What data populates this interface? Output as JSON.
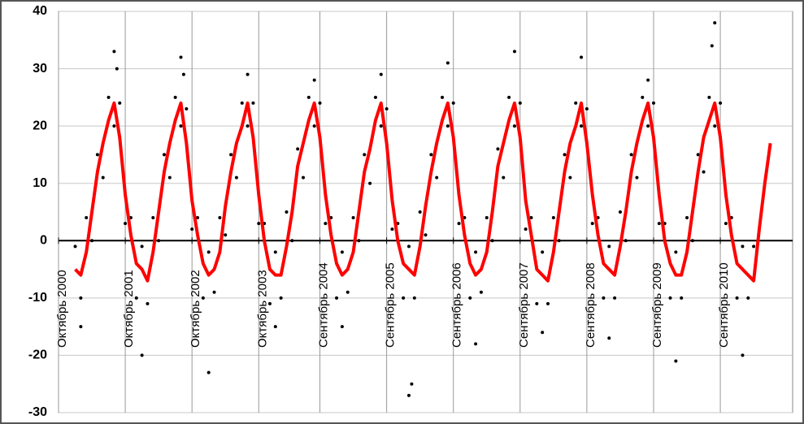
{
  "chart_data": {
    "type": "scatter",
    "xlim": [
      0,
      132
    ],
    "ylim": [
      -30,
      40
    ],
    "yticks": [
      -30,
      -20,
      -10,
      0,
      10,
      20,
      30,
      40
    ],
    "xticks": [
      {
        "value": 0,
        "label": "Октябрь 2000"
      },
      {
        "value": 12,
        "label": "Октябрь 2001"
      },
      {
        "value": 24,
        "label": "Октябрь 2002"
      },
      {
        "value": 36,
        "label": "Октябрь 2003"
      },
      {
        "value": 47,
        "label": "Сентябрь 2004"
      },
      {
        "value": 59,
        "label": "Сентябрь 2005"
      },
      {
        "value": 71,
        "label": "Сентябрь 2006"
      },
      {
        "value": 83,
        "label": "Сентябрь 2007"
      },
      {
        "value": 95,
        "label": "Сентябрь 2008"
      },
      {
        "value": 107,
        "label": "Сентябрь 2009"
      },
      {
        "value": 119,
        "label": "Сентябрь 2010"
      }
    ],
    "grid": true,
    "series": [
      {
        "type": "scatter",
        "color": "#000000",
        "x": [
          3,
          4,
          5,
          6,
          7,
          8,
          9,
          10,
          11,
          12,
          13,
          14,
          15,
          16,
          17,
          18,
          19,
          20,
          21,
          22,
          23,
          24,
          25,
          26,
          27,
          28,
          29,
          30,
          31,
          32,
          33,
          34,
          35,
          36,
          37,
          38,
          39,
          40,
          41,
          42,
          43,
          44,
          45,
          46,
          47,
          48,
          49,
          50,
          51,
          52,
          53,
          54,
          55,
          56,
          57,
          58,
          59,
          60,
          61,
          62,
          63,
          64,
          65,
          66,
          67,
          68,
          69,
          70,
          71,
          72,
          73,
          74,
          75,
          76,
          77,
          78,
          79,
          80,
          81,
          82,
          83,
          84,
          85,
          86,
          87,
          88,
          89,
          90,
          91,
          92,
          93,
          94,
          95,
          96,
          97,
          98,
          99,
          100,
          101,
          102,
          103,
          104,
          105,
          106,
          107,
          108,
          109,
          110,
          111,
          112,
          113,
          114,
          115,
          116,
          117,
          118,
          119,
          120,
          121,
          122,
          123,
          124,
          125,
          10,
          10.5,
          22,
          22.5,
          34,
          46,
          58,
          70,
          82,
          94,
          106,
          118,
          117.5,
          4,
          15,
          27,
          39,
          51,
          63,
          63.5,
          75,
          87,
          99,
          111,
          123
        ],
        "values": [
          -1,
          -10,
          4,
          0,
          15,
          11,
          25,
          20,
          24,
          3,
          4,
          -10,
          -1,
          -11,
          4,
          0,
          15,
          11,
          25,
          20,
          23,
          2,
          4,
          -10,
          -2,
          -9,
          4,
          1,
          15,
          11,
          24,
          20,
          24,
          3,
          3,
          -11,
          -2,
          -10,
          5,
          0,
          16,
          11,
          25,
          20,
          24,
          3,
          4,
          -10,
          -2,
          -9,
          4,
          0,
          15,
          10,
          25,
          20,
          23,
          2,
          3,
          -10,
          -1,
          -10,
          5,
          1,
          15,
          11,
          25,
          20,
          24,
          3,
          4,
          -10,
          -2,
          -9,
          4,
          0,
          16,
          11,
          25,
          20,
          24,
          2,
          4,
          -11,
          -2,
          -11,
          4,
          0,
          15,
          11,
          24,
          20,
          23,
          3,
          4,
          -10,
          -1,
          -10,
          5,
          0,
          15,
          11,
          25,
          20,
          24,
          3,
          3,
          -10,
          -2,
          -10,
          4,
          0,
          15,
          12,
          25,
          20,
          24,
          3,
          4,
          -10,
          -1,
          -10,
          -1,
          33,
          30,
          32,
          29,
          29,
          28,
          29,
          31,
          33,
          32,
          28,
          38,
          34,
          -15,
          -20,
          -23,
          -15,
          -15,
          -27,
          -25,
          -18,
          -16,
          -17,
          -21,
          -20
        ]
      },
      {
        "type": "line",
        "color": "#ff0000",
        "x": [
          3,
          4,
          5,
          6,
          7,
          8,
          9,
          10,
          11,
          12,
          13,
          14,
          15,
          16,
          17,
          18,
          19,
          20,
          21,
          22,
          23,
          24,
          25,
          26,
          27,
          28,
          29,
          30,
          31,
          32,
          33,
          34,
          35,
          36,
          37,
          38,
          39,
          40,
          41,
          42,
          43,
          44,
          45,
          46,
          47,
          48,
          49,
          50,
          51,
          52,
          53,
          54,
          55,
          56,
          57,
          58,
          59,
          60,
          61,
          62,
          63,
          64,
          65,
          66,
          67,
          68,
          69,
          70,
          71,
          72,
          73,
          74,
          75,
          76,
          77,
          78,
          79,
          80,
          81,
          82,
          83,
          84,
          85,
          86,
          87,
          88,
          89,
          90,
          91,
          92,
          93,
          94,
          95,
          96,
          97,
          98,
          99,
          100,
          101,
          102,
          103,
          104,
          105,
          106,
          107,
          108,
          109,
          110,
          111,
          112,
          113,
          114,
          115,
          116,
          117,
          118,
          119,
          120,
          121,
          122,
          123,
          124,
          125,
          126,
          127,
          128
        ],
        "values": [
          -5,
          -6,
          -2,
          5,
          12,
          17,
          21,
          24,
          18,
          8,
          1,
          -4,
          -5,
          -7,
          -2,
          5,
          12,
          17,
          21,
          24,
          17,
          7,
          1,
          -4,
          -6,
          -5,
          -2,
          6,
          12,
          17,
          20,
          24,
          18,
          8,
          0,
          -5,
          -6,
          -6,
          -1,
          5,
          13,
          17,
          21,
          24,
          18,
          8,
          1,
          -4,
          -6,
          -5,
          -2,
          5,
          12,
          16,
          21,
          24,
          17,
          7,
          0,
          -4,
          -5,
          -6,
          -1,
          6,
          12,
          17,
          21,
          24,
          18,
          8,
          1,
          -4,
          -6,
          -5,
          -2,
          5,
          13,
          17,
          21,
          24,
          18,
          7,
          1,
          -5,
          -6,
          -7,
          -2,
          5,
          12,
          17,
          20,
          24,
          17,
          8,
          1,
          -4,
          -5,
          -6,
          -1,
          5,
          12,
          17,
          21,
          24,
          18,
          8,
          0,
          -4,
          -6,
          -6,
          -2,
          5,
          12,
          18,
          21,
          24,
          18,
          8,
          1,
          -4,
          -5,
          -6,
          -7,
          2,
          10,
          17
        ]
      }
    ]
  }
}
